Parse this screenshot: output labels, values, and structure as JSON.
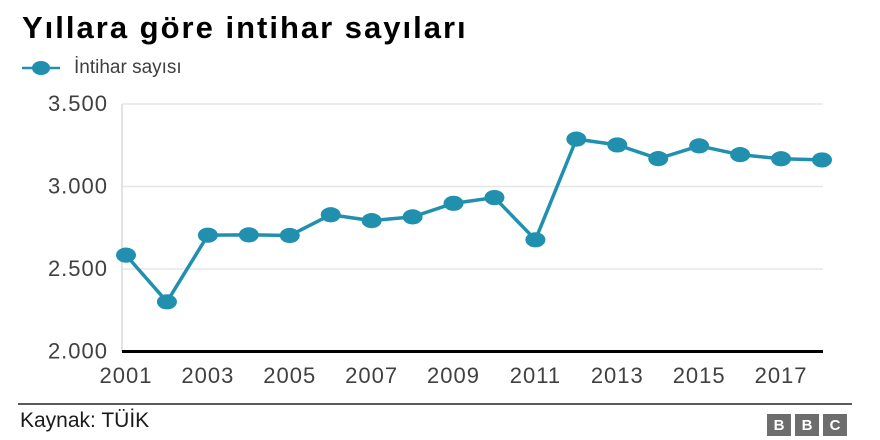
{
  "chart": {
    "title": "Yıllara göre intihar sayıları",
    "legend_label": "İntihar sayısı",
    "source_label": "Kaynak: TÜİK",
    "logo_letters": [
      "B",
      "B",
      "C"
    ],
    "colors": {
      "line": "#2090ae",
      "grid": "#e6e6e6",
      "plot_border": "#d9d9d9",
      "axis": "#000000",
      "tick_text": "#404040",
      "footer_rule": "#5a5a5a",
      "logo_bg": "#6d6d6d"
    }
  },
  "chart_data": {
    "type": "line",
    "title": "Yıllara göre intihar sayıları",
    "x": [
      2001,
      2002,
      2003,
      2004,
      2005,
      2006,
      2007,
      2008,
      2009,
      2010,
      2011,
      2012,
      2013,
      2014,
      2015,
      2016,
      2017,
      2018
    ],
    "series": [
      {
        "name": "İntihar sayısı",
        "values": [
          2584,
          2301,
          2705,
          2707,
          2703,
          2829,
          2793,
          2816,
          2898,
          2933,
          2677,
          3287,
          3252,
          3169,
          3246,
          3193,
          3168,
          3161
        ]
      }
    ],
    "xlabel": "",
    "ylabel": "",
    "x_tick_labels": [
      "2001",
      "2003",
      "2005",
      "2007",
      "2009",
      "2011",
      "2013",
      "2015",
      "2017"
    ],
    "y_tick_labels": [
      "3.500",
      "3.000",
      "2.500",
      "2.000"
    ],
    "y_tick_values": [
      3500,
      3000,
      2500,
      2000
    ],
    "ylim": [
      2000,
      3500
    ],
    "xlim": [
      2001,
      2018
    ],
    "grid": true,
    "legend_position": "top-left",
    "source": "Kaynak: TÜİK"
  }
}
